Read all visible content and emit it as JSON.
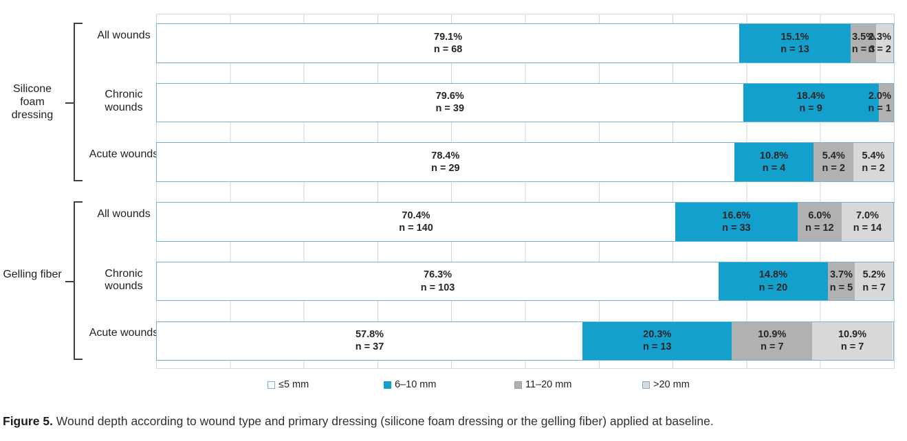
{
  "figure_caption": {
    "label": "Figure 5.",
    "text": " Wound depth according to wound type and primary dressing (silicone foam dressing or the gelling fiber) applied at baseline."
  },
  "legend": {
    "items": [
      {
        "label": "≤5 mm",
        "swatch": "legend-swatch-le5mm"
      },
      {
        "label": "6–10 mm",
        "swatch": "legend-swatch-6-10mm"
      },
      {
        "label": "11–20 mm",
        "swatch": "legend-swatch-11-20mm"
      },
      {
        "label": ">20 mm",
        "swatch": "legend-swatch-gt20mm"
      }
    ]
  },
  "colors": {
    "segment_le5mm": "#ffffff",
    "segment_6_10mm": "#14a0cd",
    "segment_11_20mm": "#b1b1b1",
    "segment_gt20mm": "#d8d8d8",
    "bar_border": "#74b2d4",
    "gridline": "#d4d4d4",
    "bracket": "#3f3f3f",
    "label_text": "#262626"
  },
  "chart_data": {
    "type": "bar",
    "subtype": "horizontal-100pct-stacked",
    "value_axis": {
      "min": 0,
      "max": 100,
      "unit": "%",
      "gridline_step": 10,
      "tick_labels_shown": false
    },
    "series_labels": [
      "≤5 mm",
      "6–10 mm",
      "11–20 mm",
      ">20 mm"
    ],
    "legend_position": "bottom",
    "grid": true,
    "groups": [
      {
        "label": "Silicone foam dressing",
        "rows": [
          {
            "label": "All wounds",
            "segments": [
              {
                "series": "≤5 mm",
                "pct": 79.1,
                "n": 68
              },
              {
                "series": "6–10 mm",
                "pct": 15.1,
                "n": 13
              },
              {
                "series": "11–20 mm",
                "pct": 3.5,
                "n": 3
              },
              {
                "series": ">20 mm",
                "pct": 2.3,
                "n": 2
              }
            ]
          },
          {
            "label": "Chronic wounds",
            "segments": [
              {
                "series": "≤5 mm",
                "pct": 79.6,
                "n": 39
              },
              {
                "series": "6–10 mm",
                "pct": 18.4,
                "n": 9
              },
              {
                "series": "11–20 mm",
                "pct": 2.0,
                "n": 1
              }
            ]
          },
          {
            "label": "Acute wounds",
            "segments": [
              {
                "series": "≤5 mm",
                "pct": 78.4,
                "n": 29
              },
              {
                "series": "6–10 mm",
                "pct": 10.8,
                "n": 4
              },
              {
                "series": "11–20 mm",
                "pct": 5.4,
                "n": 2
              },
              {
                "series": ">20 mm",
                "pct": 5.4,
                "n": 2
              }
            ]
          }
        ]
      },
      {
        "label": "Gelling fiber",
        "rows": [
          {
            "label": "All wounds",
            "segments": [
              {
                "series": "≤5 mm",
                "pct": 70.4,
                "n": 140
              },
              {
                "series": "6–10 mm",
                "pct": 16.6,
                "n": 33
              },
              {
                "series": "11–20 mm",
                "pct": 6.0,
                "n": 12
              },
              {
                "series": ">20 mm",
                "pct": 7.0,
                "n": 14
              }
            ]
          },
          {
            "label": "Chronic wounds",
            "segments": [
              {
                "series": "≤5 mm",
                "pct": 76.3,
                "n": 103
              },
              {
                "series": "6–10 mm",
                "pct": 14.8,
                "n": 20
              },
              {
                "series": "11–20 mm",
                "pct": 3.7,
                "n": 5
              },
              {
                "series": ">20 mm",
                "pct": 5.2,
                "n": 7
              }
            ]
          },
          {
            "label": "Acute wounds",
            "segments": [
              {
                "series": "≤5 mm",
                "pct": 57.8,
                "n": 37
              },
              {
                "series": "6–10 mm",
                "pct": 20.3,
                "n": 13
              },
              {
                "series": "11–20 mm",
                "pct": 10.9,
                "n": 7
              },
              {
                "series": ">20 mm",
                "pct": 10.9,
                "n": 7
              }
            ]
          }
        ]
      }
    ]
  }
}
